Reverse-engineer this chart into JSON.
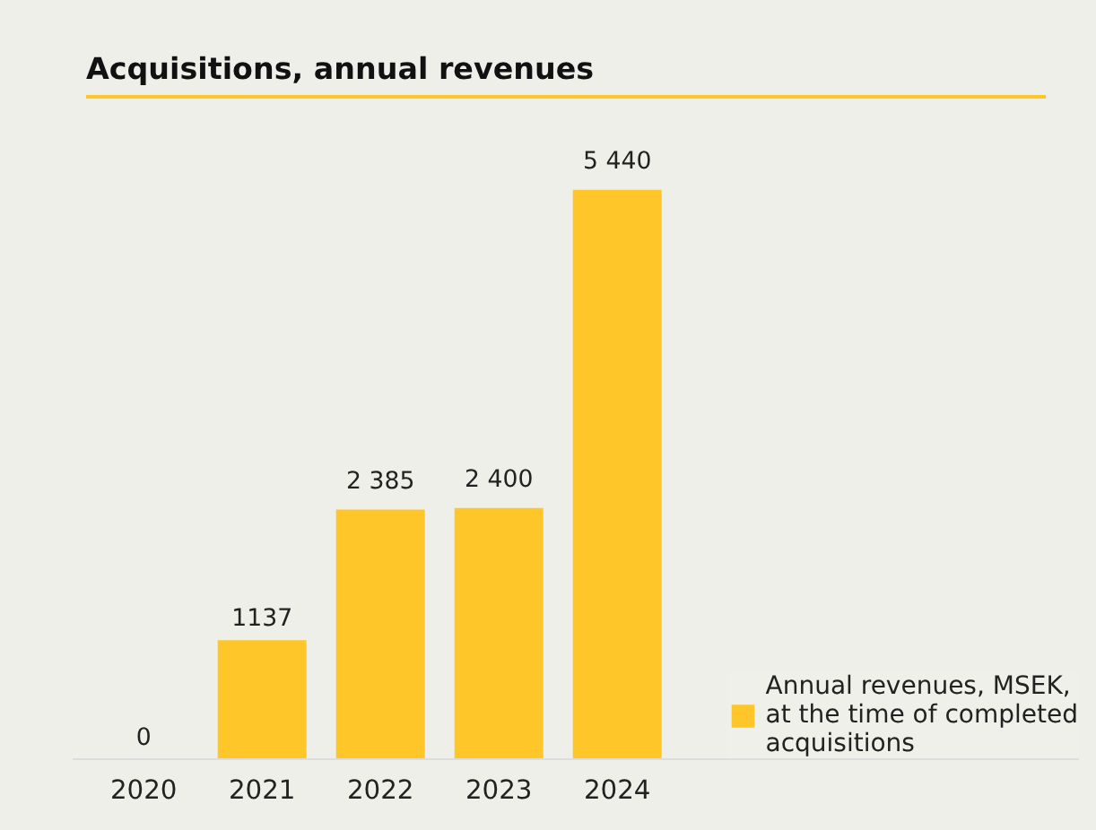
{
  "chart_data": {
    "type": "bar",
    "title": "Acquisitions, annual revenues",
    "categories": [
      "2020",
      "2021",
      "2022",
      "2023",
      "2024"
    ],
    "series": [
      {
        "name": "Annual revenues, MSEK, at the time of completed acquisitions",
        "color": "#ffc629",
        "values": [
          0,
          1137,
          2385,
          2400,
          5440
        ],
        "value_labels": [
          "0",
          "1137",
          "2 385",
          "2 400",
          "5 440"
        ]
      }
    ],
    "legend": "bottom right",
    "grid": false
  }
}
